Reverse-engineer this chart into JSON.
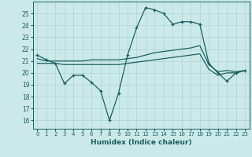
{
  "xlabel": "Humidex (Indice chaleur)",
  "x_ticks": [
    0,
    1,
    2,
    3,
    4,
    5,
    6,
    7,
    8,
    9,
    10,
    11,
    12,
    13,
    14,
    15,
    16,
    17,
    18,
    19,
    20,
    21,
    22,
    23
  ],
  "y_ticks": [
    16,
    17,
    18,
    19,
    20,
    21,
    22,
    23,
    24,
    25
  ],
  "ylim": [
    15.3,
    26.0
  ],
  "xlim": [
    -0.5,
    23.5
  ],
  "bg_color": "#cce9e9",
  "grid_color": "#aad4d4",
  "line_color": "#1a5f5f",
  "line1_x": [
    0,
    1,
    2,
    3,
    4,
    5,
    6,
    7,
    8,
    9,
    10,
    11,
    12,
    13,
    14,
    15,
    16,
    17,
    18,
    19,
    20,
    21,
    22,
    23
  ],
  "line1_y": [
    21.5,
    21.1,
    20.8,
    19.1,
    19.8,
    19.8,
    19.2,
    18.5,
    16.0,
    18.3,
    21.5,
    23.8,
    25.5,
    25.3,
    25.0,
    24.1,
    24.3,
    24.3,
    24.1,
    20.8,
    20.0,
    19.3,
    20.0,
    20.2
  ],
  "line2_x": [
    0,
    1,
    2,
    3,
    4,
    5,
    6,
    7,
    8,
    9,
    10,
    11,
    12,
    13,
    14,
    15,
    16,
    17,
    18,
    19,
    20,
    21,
    22,
    23
  ],
  "line2_y": [
    21.2,
    21.0,
    21.0,
    21.0,
    21.0,
    21.0,
    21.1,
    21.1,
    21.1,
    21.1,
    21.2,
    21.3,
    21.5,
    21.7,
    21.8,
    21.9,
    22.0,
    22.1,
    22.3,
    20.7,
    20.1,
    20.2,
    20.1,
    20.2
  ],
  "line3_x": [
    0,
    1,
    2,
    3,
    4,
    5,
    6,
    7,
    8,
    9,
    10,
    11,
    12,
    13,
    14,
    15,
    16,
    17,
    18,
    19,
    20,
    21,
    22,
    23
  ],
  "line3_y": [
    20.8,
    20.8,
    20.8,
    20.7,
    20.7,
    20.7,
    20.7,
    20.7,
    20.7,
    20.7,
    20.8,
    20.9,
    21.0,
    21.1,
    21.2,
    21.3,
    21.4,
    21.5,
    21.6,
    20.3,
    19.8,
    20.0,
    20.0,
    20.2
  ]
}
